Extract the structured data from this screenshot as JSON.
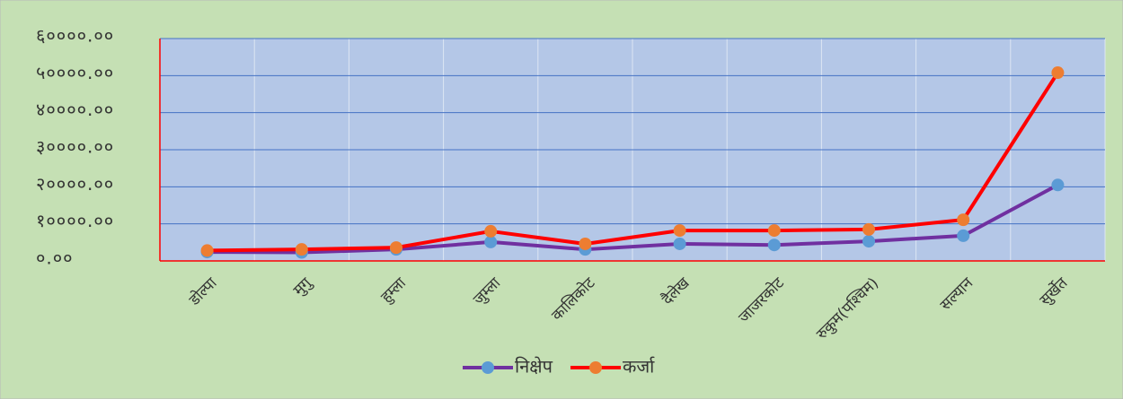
{
  "chart_data": {
    "type": "line",
    "categories": [
      "डोल्पा",
      "मुगु",
      "हुम्ला",
      "जुम्ला",
      "कालिकोट",
      "दैलेख",
      "जाजरकोट",
      "रुकुम(पश्चिम)",
      "सल्यान",
      "सुर्खेत"
    ],
    "series": [
      {
        "name": "निक्षेप",
        "color": "#7030a0",
        "marker_color": "#5b9bd5",
        "values": [
          2400,
          2300,
          3100,
          5100,
          3100,
          4600,
          4300,
          5300,
          6800,
          20500
        ]
      },
      {
        "name": "कर्जा",
        "color": "#ff0000",
        "marker_color": "#ed7d31",
        "values": [
          2800,
          3100,
          3600,
          8000,
          4600,
          8200,
          8200,
          8500,
          11100,
          50800
        ]
      }
    ],
    "ylim": [
      0,
      60000
    ],
    "yticks": [
      {
        "value": 0,
        "label": "०.००"
      },
      {
        "value": 10000,
        "label": "१००००.००"
      },
      {
        "value": 20000,
        "label": "२००००.००"
      },
      {
        "value": 30000,
        "label": "३००००.००"
      },
      {
        "value": 40000,
        "label": "४००००.००"
      },
      {
        "value": 50000,
        "label": "५००००.००"
      },
      {
        "value": 60000,
        "label": "६००००.००"
      }
    ],
    "grid": true,
    "legend": "bottom"
  }
}
